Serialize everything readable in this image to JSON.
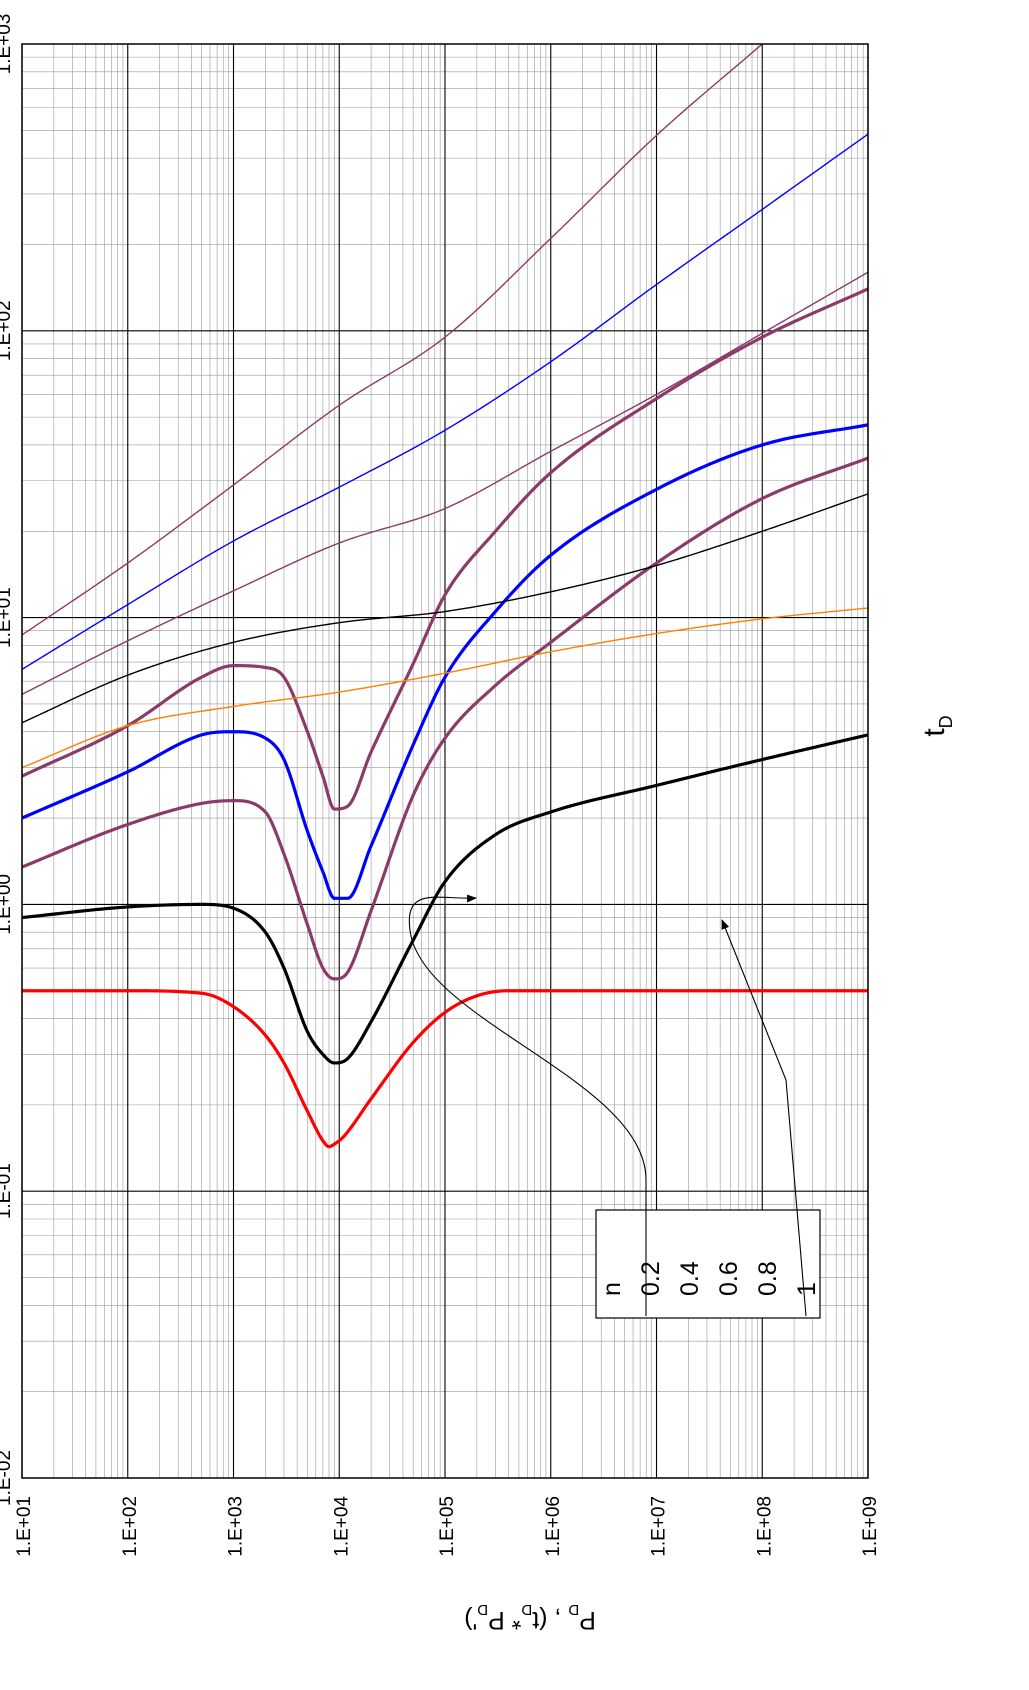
{
  "chart_data": {
    "type": "line",
    "orientation": "rotated-90-clockwise",
    "xlabel": "t",
    "xlabel_sub": "D",
    "ylabel_parts": [
      "P",
      "D",
      " , (t",
      "D",
      "* P",
      "D",
      "')"
    ],
    "xscale": "log",
    "yscale": "log",
    "xlim": [
      10,
      1000000000
    ],
    "ylim": [
      0.01,
      1000
    ],
    "grid": true,
    "x_tick_labels": [
      "1.E+01",
      "1.E+02",
      "1.E+03",
      "1.E+04",
      "1.E+05",
      "1.E+06",
      "1.E+07",
      "1.E+08",
      "1.E+09"
    ],
    "y_tick_labels": [
      "1.E-02",
      "1.E-01",
      "1.E+00",
      "1.E+01",
      "1.E+02",
      "1.E+03"
    ],
    "legend": {
      "title": "n",
      "entries": [
        "0.2",
        "0.4",
        "0.6",
        "0.8",
        "1"
      ],
      "placement": "inside-lower-left"
    },
    "series": [
      {
        "n": "1",
        "kind": "derivative",
        "color": "#ff0000",
        "width": 3.2,
        "points": [
          [
            10,
            0.5
          ],
          [
            100,
            0.5
          ],
          [
            500,
            0.49
          ],
          [
            1000,
            0.44
          ],
          [
            2000,
            0.35
          ],
          [
            3000,
            0.28
          ],
          [
            5000,
            0.19
          ],
          [
            7000,
            0.15
          ],
          [
            8000,
            0.143
          ],
          [
            9000,
            0.146
          ],
          [
            11000,
            0.155
          ],
          [
            20000,
            0.21
          ],
          [
            50000,
            0.33
          ],
          [
            100000,
            0.42
          ],
          [
            200000,
            0.48
          ],
          [
            400000,
            0.5
          ],
          [
            1000000000,
            0.5
          ]
        ]
      },
      {
        "n": "0.8",
        "kind": "derivative",
        "color": "#000000",
        "width": 3.2,
        "points": [
          [
            10,
            0.9
          ],
          [
            100,
            0.98
          ],
          [
            500,
            1.0
          ],
          [
            1000,
            0.97
          ],
          [
            2000,
            0.8
          ],
          [
            3000,
            0.6
          ],
          [
            5000,
            0.36
          ],
          [
            7000,
            0.3
          ],
          [
            9000,
            0.28
          ],
          [
            12000,
            0.29
          ],
          [
            20000,
            0.39
          ],
          [
            50000,
            0.75
          ],
          [
            100000,
            1.2
          ],
          [
            300000,
            1.75
          ],
          [
            1000000,
            2.1
          ],
          [
            10000000,
            2.6
          ],
          [
            100000000,
            3.2
          ],
          [
            1000000000,
            3.9
          ]
        ]
      },
      {
        "n": "0.6",
        "kind": "derivative",
        "color": "#8b3a6a",
        "width": 3.2,
        "points": [
          [
            10,
            1.35
          ],
          [
            100,
            1.9
          ],
          [
            500,
            2.25
          ],
          [
            1000,
            2.3
          ],
          [
            2000,
            2.1
          ],
          [
            3000,
            1.5
          ],
          [
            5000,
            0.85
          ],
          [
            7000,
            0.6
          ],
          [
            9000,
            0.55
          ],
          [
            12000,
            0.58
          ],
          [
            20000,
            0.95
          ],
          [
            50000,
            2.4
          ],
          [
            100000,
            3.8
          ],
          [
            300000,
            5.8
          ],
          [
            1000000,
            8.2
          ],
          [
            10000000,
            15.5
          ],
          [
            100000000,
            26
          ],
          [
            1000000000,
            36
          ]
        ]
      },
      {
        "n": "0.4",
        "kind": "derivative",
        "color": "#0000ff",
        "width": 3.2,
        "points": [
          [
            10,
            2.0
          ],
          [
            100,
            2.9
          ],
          [
            500,
            3.9
          ],
          [
            1000,
            4.0
          ],
          [
            2000,
            3.8
          ],
          [
            3000,
            3.2
          ],
          [
            5000,
            1.8
          ],
          [
            7000,
            1.3
          ],
          [
            9000,
            1.05
          ],
          [
            12000,
            1.05
          ],
          [
            20000,
            1.6
          ],
          [
            50000,
            3.6
          ],
          [
            100000,
            6.2
          ],
          [
            300000,
            10.5
          ],
          [
            1000000,
            16.5
          ],
          [
            10000000,
            28
          ],
          [
            100000000,
            40
          ],
          [
            1000000000,
            47
          ]
        ]
      },
      {
        "n": "0.2",
        "kind": "derivative",
        "color": "#8b3a6a",
        "width": 3.2,
        "points": [
          [
            10,
            2.8
          ],
          [
            100,
            4.2
          ],
          [
            500,
            6.2
          ],
          [
            1000,
            6.8
          ],
          [
            2000,
            6.7
          ],
          [
            3000,
            6.2
          ],
          [
            5000,
            4.0
          ],
          [
            7000,
            2.8
          ],
          [
            9000,
            2.15
          ],
          [
            12000,
            2.2
          ],
          [
            20000,
            3.4
          ],
          [
            50000,
            6.9
          ],
          [
            100000,
            12
          ],
          [
            300000,
            20
          ],
          [
            1000000,
            32
          ],
          [
            10000000,
            58
          ],
          [
            100000000,
            95
          ],
          [
            1000000000,
            140
          ]
        ]
      },
      {
        "n": "1",
        "kind": "pressure",
        "color": "#ff7f00",
        "width": 1.4,
        "points": [
          [
            10,
            3.0
          ],
          [
            100,
            4.2
          ],
          [
            1000,
            4.9
          ],
          [
            10000,
            5.5
          ],
          [
            100000,
            6.4
          ],
          [
            1000000,
            7.6
          ],
          [
            10000000,
            8.8
          ],
          [
            100000000,
            9.9
          ],
          [
            1000000000,
            10.8
          ]
        ]
      },
      {
        "n": "0.8",
        "kind": "pressure",
        "color": "#000000",
        "width": 1.4,
        "points": [
          [
            10,
            4.3
          ],
          [
            100,
            6.3
          ],
          [
            1000,
            8.2
          ],
          [
            10000,
            9.6
          ],
          [
            100000,
            10.5
          ],
          [
            1000000,
            12.3
          ],
          [
            10000000,
            15.2
          ],
          [
            100000000,
            20
          ],
          [
            1000000000,
            27
          ]
        ]
      },
      {
        "n": "0.6",
        "kind": "pressure",
        "color": "#8b3a6a",
        "width": 1.4,
        "points": [
          [
            10,
            5.4
          ],
          [
            100,
            8.3
          ],
          [
            1000,
            12.4
          ],
          [
            10000,
            18.2
          ],
          [
            100000,
            24
          ],
          [
            1000000,
            38
          ],
          [
            10000000,
            60
          ],
          [
            100000000,
            98
          ],
          [
            1000000000,
            160
          ]
        ]
      },
      {
        "n": "0.4",
        "kind": "pressure",
        "color": "#0000ff",
        "width": 1.4,
        "points": [
          [
            10,
            6.6
          ],
          [
            100,
            11.1
          ],
          [
            1000,
            18.5
          ],
          [
            10000,
            28.5
          ],
          [
            100000,
            45
          ],
          [
            1000000,
            78
          ],
          [
            10000000,
            145
          ],
          [
            100000000,
            265
          ],
          [
            1000000000,
            485
          ]
        ]
      },
      {
        "n": "0.2",
        "kind": "pressure",
        "color": "#8b3a6a",
        "width": 1.4,
        "points": [
          [
            10,
            8.7
          ],
          [
            100,
            15.5
          ],
          [
            1000,
            29
          ],
          [
            10000,
            55
          ],
          [
            100000,
            95
          ],
          [
            1000000,
            210
          ],
          [
            10000000,
            480
          ],
          [
            100000000,
            1000
          ]
        ]
      }
    ]
  }
}
